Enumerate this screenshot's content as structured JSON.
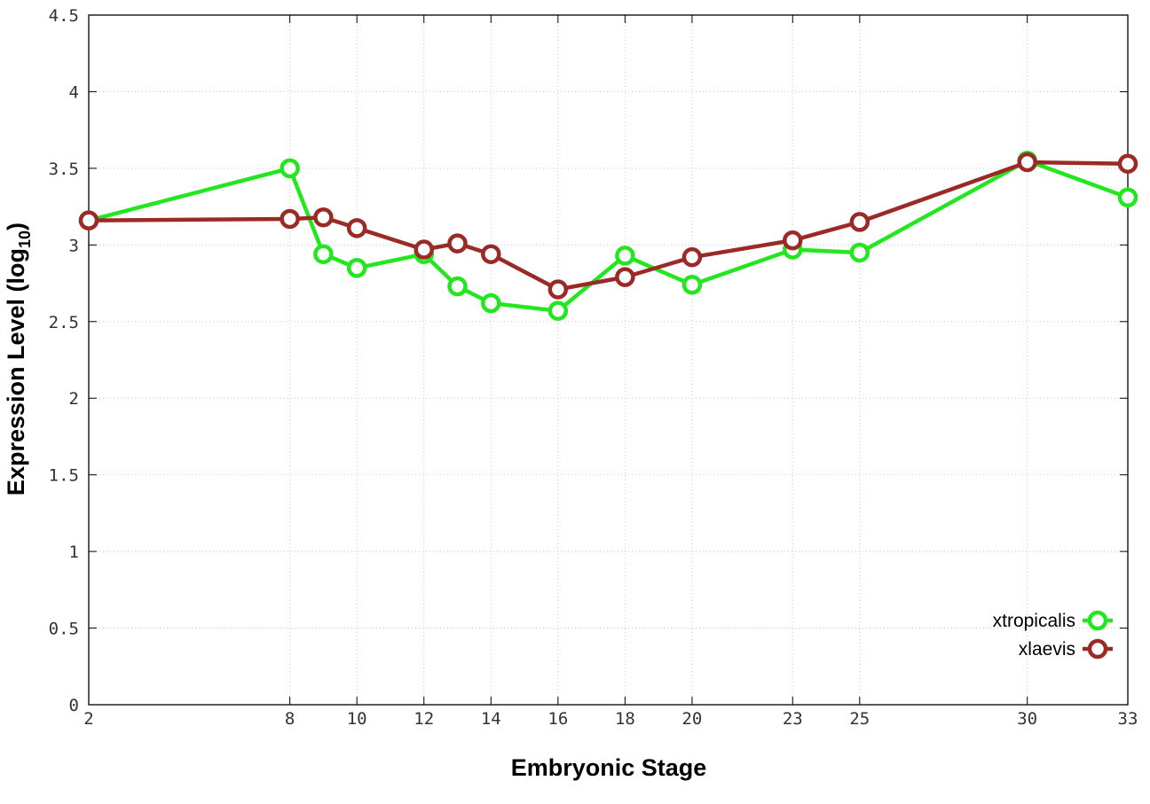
{
  "chart_data": {
    "type": "line",
    "title": "",
    "xlabel": "Embryonic Stage",
    "ylabel": {
      "main": "Expression Level (log",
      "sub": "10",
      "close": ")"
    },
    "x": [
      2,
      8,
      9,
      10,
      12,
      13,
      14,
      16,
      18,
      20,
      23,
      25,
      30,
      33
    ],
    "xticks": [
      2,
      8,
      10,
      12,
      14,
      16,
      18,
      20,
      23,
      25,
      30,
      33
    ],
    "yticks": [
      "0",
      "0.5",
      "1",
      "1.5",
      "2",
      "2.5",
      "3",
      "3.5",
      "4",
      "4.5"
    ],
    "xlim": [
      2,
      33
    ],
    "ylim": [
      0,
      4.5
    ],
    "grid": true,
    "legend_position": "bottom-right",
    "series": [
      {
        "name": "xtropicalis",
        "color": "#22e61e",
        "marker": "open-circle",
        "values": [
          3.16,
          3.5,
          2.94,
          2.85,
          2.94,
          2.73,
          2.62,
          2.57,
          2.93,
          2.74,
          2.97,
          2.95,
          3.55,
          3.31
        ]
      },
      {
        "name": "xlaevis",
        "color": "#9b2a27",
        "marker": "open-circle",
        "values": [
          3.16,
          3.17,
          3.18,
          3.11,
          2.97,
          3.01,
          2.94,
          2.71,
          2.79,
          2.92,
          3.03,
          3.15,
          3.54,
          3.53
        ]
      }
    ]
  }
}
